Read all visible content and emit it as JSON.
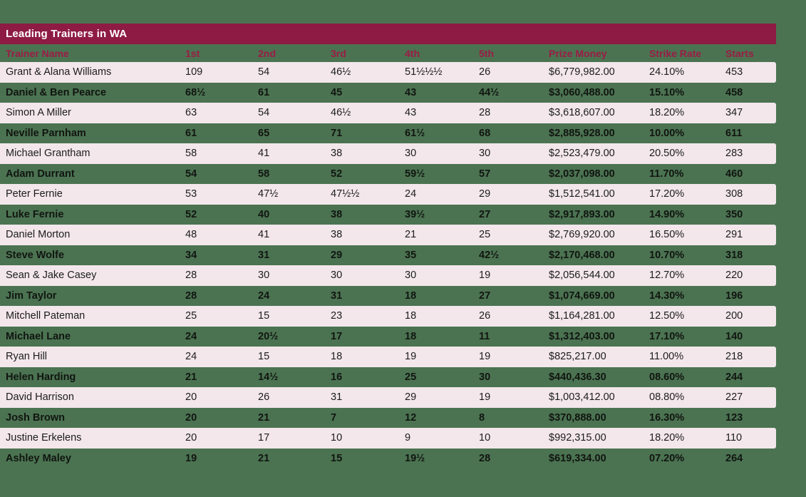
{
  "page": {
    "background_color": "#4b7351"
  },
  "title_bar": {
    "title": "Leading Trainers in WA",
    "background_color": "#8e1b43",
    "text_color": "#ffffff"
  },
  "table": {
    "header_text_color": "#9b1c46",
    "alt_row_color": "#f3e7eb",
    "columns": [
      "Trainer Name",
      "1st",
      "2nd",
      "3rd",
      "4th",
      "5th",
      "Prize Money",
      "Strike Rate",
      "Starts"
    ],
    "rows": [
      [
        "Grant & Alana Williams",
        "109",
        "54",
        "46½",
        "51½½½",
        "26",
        "$6,779,982.00",
        "24.10%",
        "453"
      ],
      [
        "Daniel & Ben Pearce",
        "68½",
        "61",
        "45",
        "43",
        "44½",
        "$3,060,488.00",
        "15.10%",
        "458"
      ],
      [
        "Simon A Miller",
        "63",
        "54",
        "46½",
        "43",
        "28",
        "$3,618,607.00",
        "18.20%",
        "347"
      ],
      [
        "Neville Parnham",
        "61",
        "65",
        "71",
        "61½",
        "68",
        "$2,885,928.00",
        "10.00%",
        "611"
      ],
      [
        "Michael Grantham",
        "58",
        "41",
        "38",
        "30",
        "30",
        "$2,523,479.00",
        "20.50%",
        "283"
      ],
      [
        "Adam Durrant",
        "54",
        "58",
        "52",
        "59½",
        "57",
        "$2,037,098.00",
        "11.70%",
        "460"
      ],
      [
        "Peter Fernie",
        "53",
        "47½",
        "47½½",
        "24",
        "29",
        "$1,512,541.00",
        "17.20%",
        "308"
      ],
      [
        "Luke Fernie",
        "52",
        "40",
        "38",
        "39½",
        "27",
        "$2,917,893.00",
        "14.90%",
        "350"
      ],
      [
        "Daniel Morton",
        "48",
        "41",
        "38",
        "21",
        "25",
        "$2,769,920.00",
        "16.50%",
        "291"
      ],
      [
        "Steve Wolfe",
        "34",
        "31",
        "29",
        "35",
        "42½",
        "$2,170,468.00",
        "10.70%",
        "318"
      ],
      [
        "Sean & Jake Casey",
        "28",
        "30",
        "30",
        "30",
        "19",
        "$2,056,544.00",
        "12.70%",
        "220"
      ],
      [
        "Jim Taylor",
        "28",
        "24",
        "31",
        "18",
        "27",
        "$1,074,669.00",
        "14.30%",
        "196"
      ],
      [
        "Mitchell Pateman",
        "25",
        "15",
        "23",
        "18",
        "26",
        "$1,164,281.00",
        "12.50%",
        "200"
      ],
      [
        "Michael Lane",
        "24",
        "20½",
        "17",
        "18",
        "11",
        "$1,312,403.00",
        "17.10%",
        "140"
      ],
      [
        "Ryan Hill",
        "24",
        "15",
        "18",
        "19",
        "19",
        "$825,217.00",
        "11.00%",
        "218"
      ],
      [
        "Helen Harding",
        "21",
        "14½",
        "16",
        "25",
        "30",
        "$440,436.30",
        "08.60%",
        "244"
      ],
      [
        "David Harrison",
        "20",
        "26",
        "31",
        "29",
        "19",
        "$1,003,412.00",
        "08.80%",
        "227"
      ],
      [
        "Josh Brown",
        "20",
        "21",
        "7",
        "12",
        "8",
        "$370,888.00",
        "16.30%",
        "123"
      ],
      [
        "Justine Erkelens",
        "20",
        "17",
        "10",
        "9",
        "10",
        "$992,315.00",
        "18.20%",
        "110"
      ],
      [
        "Ashley Maley",
        "19",
        "21",
        "15",
        "19½",
        "28",
        "$619,334.00",
        "07.20%",
        "264"
      ]
    ]
  }
}
